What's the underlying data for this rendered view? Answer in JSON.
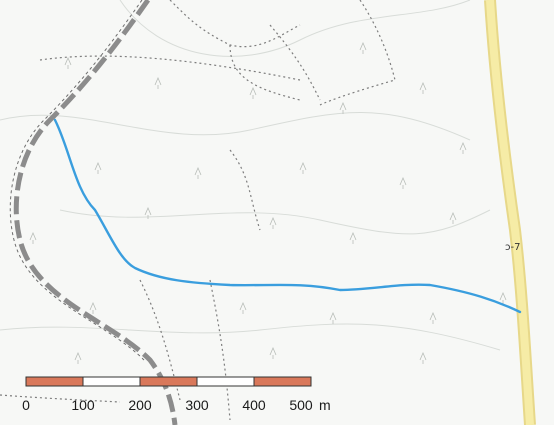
{
  "map": {
    "road_label": "ɔ-7",
    "scale_bar": {
      "ticks": [
        "0",
        "100",
        "200",
        "300",
        "400",
        "500"
      ],
      "unit": "m"
    },
    "colors": {
      "stream": "#2f9ad8",
      "road": "#f2e38c",
      "railway": "#8c8c8c",
      "scale_fill": "#d9785a",
      "scale_empty": "#ffffff",
      "trail": "#888888"
    }
  }
}
